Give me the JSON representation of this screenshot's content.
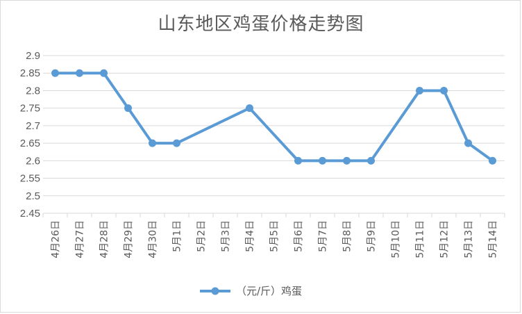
{
  "chart_data": {
    "type": "line",
    "title": "山东地区鸡蛋价格走势图",
    "xlabel": "",
    "ylabel": "",
    "categories": [
      "4月26日",
      "4月27日",
      "4月28日",
      "4月29日",
      "4月30日",
      "5月1日",
      "5月2日",
      "5月3日",
      "5月4日",
      "5月5日",
      "5月6日",
      "5月7日",
      "5月8日",
      "5月9日",
      "5月10日",
      "5月11日",
      "5月12日",
      "5月13日",
      "5月14日"
    ],
    "series": [
      {
        "name": "（元/斤）鸡蛋",
        "values": [
          2.85,
          2.85,
          2.85,
          2.75,
          2.65,
          2.65,
          null,
          null,
          2.75,
          null,
          2.6,
          2.6,
          2.6,
          2.6,
          null,
          2.8,
          2.8,
          2.65,
          2.6
        ]
      }
    ],
    "ylim": [
      2.45,
      2.9
    ],
    "yticks": [
      "2.9",
      "2.85",
      "2.8",
      "2.75",
      "2.7",
      "2.65",
      "2.6",
      "2.55",
      "2.5",
      "2.45"
    ],
    "grid": true,
    "legend": "bottom",
    "colors": {
      "series": "#5b9bd5",
      "grid": "#d9d9d9",
      "axis_text": "#595959"
    }
  }
}
